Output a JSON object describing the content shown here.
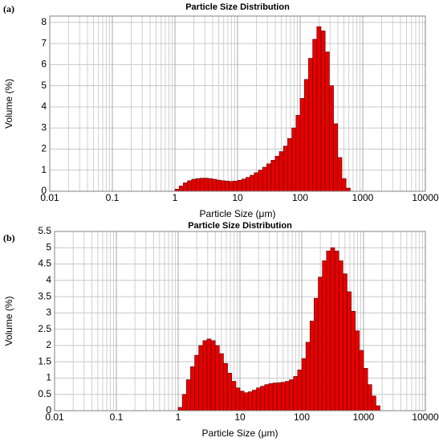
{
  "chart_data": [
    {
      "type": "histogram",
      "label": "(a)",
      "title": "Particle Size Distribution",
      "x_label": "Particle Size (μm)",
      "y_label": "Volume (%)",
      "x_scale": "log",
      "xlim": [
        0.01,
        10000
      ],
      "xticks": [
        0.01,
        0.1,
        1,
        10,
        100,
        1000,
        10000
      ],
      "ylim": [
        0,
        8.3
      ],
      "yticks": [
        0,
        1,
        2,
        3,
        4,
        5,
        6,
        7,
        8
      ],
      "grid": true,
      "color": "#e60000",
      "bins": [
        1,
        1.166,
        1.359,
        1.585,
        1.848,
        2.154,
        2.512,
        2.929,
        3.415,
        3.981,
        4.642,
        5.412,
        6.31,
        7.356,
        8.577,
        10,
        11.66,
        13.59,
        15.85,
        18.48,
        21.54,
        25.12,
        29.29,
        34.15,
        39.81,
        46.42,
        54.12,
        63.1,
        73.56,
        85.77,
        100,
        116.6,
        135.9,
        158.5,
        184.8,
        215.4,
        251.2,
        292.9,
        341.5,
        398.1,
        464.2,
        541.2,
        631
      ],
      "values": [
        0.1,
        0.25,
        0.4,
        0.5,
        0.57,
        0.6,
        0.62,
        0.62,
        0.6,
        0.57,
        0.53,
        0.5,
        0.48,
        0.47,
        0.48,
        0.52,
        0.58,
        0.66,
        0.76,
        0.88,
        1.0,
        1.14,
        1.3,
        1.47,
        1.66,
        1.88,
        2.14,
        2.5,
        3.0,
        3.6,
        4.4,
        5.3,
        6.3,
        7.2,
        7.8,
        7.6,
        6.6,
        5.0,
        3.2,
        1.6,
        0.6,
        0.15
      ]
    },
    {
      "type": "histogram",
      "label": "(b)",
      "title": "Particle Size Distribution",
      "x_label": "Particle Size (μm)",
      "y_label": "Volume (%)",
      "x_scale": "log",
      "xlim": [
        0.01,
        10000
      ],
      "xticks": [
        0.01,
        0.1,
        1,
        10,
        100,
        1000,
        10000
      ],
      "ylim": [
        0,
        5.5
      ],
      "yticks": [
        0,
        0.5,
        1,
        1.5,
        2,
        2.5,
        3,
        3.5,
        4,
        4.5,
        5,
        5.5
      ],
      "grid": true,
      "color": "#e60000",
      "bins": [
        1,
        1.166,
        1.359,
        1.585,
        1.848,
        2.154,
        2.512,
        2.929,
        3.415,
        3.981,
        4.642,
        5.412,
        6.31,
        7.356,
        8.577,
        10,
        11.66,
        13.59,
        15.85,
        18.48,
        21.54,
        25.12,
        29.29,
        34.15,
        39.81,
        46.42,
        54.12,
        63.1,
        73.56,
        85.77,
        100,
        116.6,
        135.9,
        158.5,
        184.8,
        215.4,
        251.2,
        292.9,
        341.5,
        398.1,
        464.2,
        541.2,
        631,
        735.6,
        857.7,
        1000,
        1166,
        1359,
        1585,
        1848
      ],
      "values": [
        0.1,
        0.5,
        0.95,
        1.35,
        1.7,
        2.0,
        2.15,
        2.2,
        2.15,
        2.0,
        1.75,
        1.45,
        1.15,
        0.9,
        0.7,
        0.6,
        0.55,
        0.58,
        0.63,
        0.7,
        0.75,
        0.8,
        0.83,
        0.85,
        0.86,
        0.87,
        0.9,
        0.95,
        1.05,
        1.25,
        1.6,
        2.1,
        2.75,
        3.45,
        4.1,
        4.6,
        4.9,
        5.0,
        4.9,
        4.6,
        4.2,
        3.65,
        3.05,
        2.45,
        1.85,
        1.3,
        0.8,
        0.45,
        0.15
      ]
    }
  ]
}
